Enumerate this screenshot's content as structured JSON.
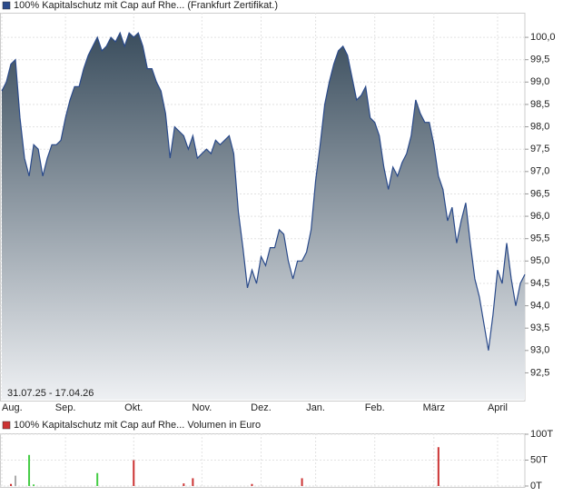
{
  "chart_data": [
    {
      "type": "area",
      "legend": "100% Kapitalschutz mit Cap  auf Rhe... (Frankfurt Zertifikat.)",
      "legend_color": "#2a4a8a",
      "date_range": "31.07.25 - 17.04.26",
      "color": "#2a4a8a",
      "gradient": [
        "#3b4e5e",
        "#eef0f3"
      ],
      "categories": [
        "Aug.",
        null,
        null,
        null,
        null,
        null,
        null,
        null,
        null,
        null,
        null,
        null,
        null,
        null,
        "Sep.",
        null,
        null,
        null,
        null,
        null,
        null,
        null,
        null,
        null,
        null,
        null,
        null,
        null,
        null,
        "Okt.",
        null,
        null,
        null,
        null,
        null,
        null,
        null,
        null,
        null,
        null,
        null,
        null,
        null,
        null,
        "Nov.",
        null,
        null,
        null,
        null,
        null,
        null,
        null,
        null,
        null,
        null,
        null,
        null,
        "Dez.",
        null,
        null,
        null,
        null,
        null,
        null,
        null,
        null,
        null,
        null,
        null,
        "Jan.",
        null,
        null,
        null,
        null,
        null,
        null,
        null,
        null,
        null,
        null,
        null,
        null,
        "Feb.",
        null,
        null,
        null,
        null,
        null,
        null,
        null,
        null,
        null,
        null,
        null,
        null,
        "März",
        null,
        null,
        null,
        null,
        null,
        null,
        null,
        null,
        null,
        null,
        null,
        null,
        null,
        "April",
        null,
        null,
        null,
        null,
        null,
        null
      ],
      "values": [
        98.8,
        99.0,
        99.4,
        99.5,
        98.2,
        97.3,
        96.9,
        97.6,
        97.5,
        96.9,
        97.3,
        97.6,
        97.6,
        97.7,
        98.2,
        98.6,
        98.9,
        98.9,
        99.3,
        99.6,
        99.8,
        100.0,
        99.7,
        99.8,
        100.0,
        99.9,
        100.1,
        99.8,
        100.1,
        100.0,
        100.1,
        99.8,
        99.3,
        99.3,
        99.0,
        98.8,
        98.3,
        97.3,
        98.0,
        97.9,
        97.8,
        97.5,
        97.8,
        97.3,
        97.4,
        97.5,
        97.4,
        97.7,
        97.6,
        97.7,
        97.8,
        97.4,
        96.1,
        95.3,
        94.4,
        94.8,
        94.5,
        95.1,
        94.9,
        95.3,
        95.3,
        95.7,
        95.6,
        95.0,
        94.6,
        95.0,
        95.0,
        95.2,
        95.7,
        96.8,
        97.6,
        98.5,
        99.0,
        99.4,
        99.7,
        99.8,
        99.6,
        99.1,
        98.6,
        98.7,
        98.9,
        98.2,
        98.1,
        97.8,
        97.1,
        96.6,
        97.1,
        96.9,
        97.2,
        97.4,
        97.8,
        98.6,
        98.3,
        98.1,
        98.1,
        97.6,
        96.9,
        96.6,
        95.9,
        96.2,
        95.4,
        95.9,
        96.3,
        95.4,
        94.6,
        94.2,
        93.6,
        93.0,
        93.8,
        94.8,
        94.5,
        95.4,
        94.6,
        94.0,
        94.5,
        94.7
      ],
      "ylim": [
        91.9,
        100.55
      ],
      "yticks": [
        {
          "value": 92.5,
          "label": "92,5"
        },
        {
          "value": 93,
          "label": "93,0"
        },
        {
          "value": 93.5,
          "label": "93,5"
        },
        {
          "value": 94,
          "label": "94,0"
        },
        {
          "value": 94.5,
          "label": "94,5"
        },
        {
          "value": 95,
          "label": "95,0"
        },
        {
          "value": 95.5,
          "label": "95,5"
        },
        {
          "value": 96,
          "label": "96,0"
        },
        {
          "value": 96.5,
          "label": "96,5"
        },
        {
          "value": 97,
          "label": "97,0"
        },
        {
          "value": 97.5,
          "label": "97,5"
        },
        {
          "value": 98,
          "label": "98,0"
        },
        {
          "value": 98.5,
          "label": "98,5"
        },
        {
          "value": 99,
          "label": "99,0"
        },
        {
          "value": 99.5,
          "label": "99,5"
        },
        {
          "value": 100,
          "label": "100,0"
        }
      ],
      "grid": true
    },
    {
      "type": "bar",
      "legend": "100% Kapitalschutz mit Cap  auf Rhe... Volumen in Euro",
      "legend_color": "#cc3333",
      "values": [
        null,
        null,
        4,
        20,
        null,
        null,
        60,
        3,
        null,
        null,
        null,
        null,
        null,
        null,
        null,
        null,
        null,
        null,
        null,
        null,
        null,
        25,
        null,
        null,
        null,
        null,
        null,
        null,
        null,
        50,
        null,
        null,
        null,
        null,
        null,
        null,
        null,
        null,
        null,
        null,
        5,
        null,
        15,
        null,
        null,
        null,
        null,
        null,
        null,
        null,
        null,
        null,
        null,
        null,
        null,
        4,
        null,
        null,
        null,
        null,
        null,
        null,
        null,
        null,
        null,
        null,
        15,
        null,
        null,
        null,
        null,
        null,
        null,
        null,
        null,
        null,
        null,
        null,
        null,
        null,
        null,
        null,
        null,
        null,
        null,
        null,
        null,
        null,
        null,
        null,
        null,
        null,
        null,
        null,
        null,
        null,
        75,
        null,
        null,
        null,
        null,
        null,
        null,
        null,
        null,
        null,
        null,
        null,
        null,
        null,
        null,
        null,
        null,
        null,
        null,
        null
      ],
      "colors": [
        null,
        null,
        "#cc3333",
        "#aaaaaa",
        null,
        null,
        "#44cc44",
        "#44cc44",
        null,
        null,
        null,
        null,
        null,
        null,
        null,
        null,
        null,
        null,
        null,
        null,
        null,
        "#44cc44",
        null,
        null,
        null,
        null,
        null,
        null,
        null,
        "#cc3333",
        null,
        null,
        null,
        null,
        null,
        null,
        null,
        null,
        null,
        null,
        "#cc3333",
        null,
        "#cc3333",
        null,
        null,
        null,
        null,
        null,
        null,
        null,
        null,
        null,
        null,
        null,
        null,
        "#cc3333",
        null,
        null,
        null,
        null,
        null,
        null,
        null,
        null,
        null,
        null,
        "#cc3333",
        null,
        null,
        null,
        null,
        null,
        null,
        null,
        null,
        null,
        null,
        null,
        null,
        null,
        null,
        null,
        null,
        null,
        null,
        null,
        null,
        null,
        null,
        null,
        null,
        null,
        null,
        null,
        null,
        null,
        "#cc3333",
        null,
        null,
        null,
        null,
        null,
        null,
        null,
        null,
        null,
        null,
        null,
        null,
        null,
        null,
        null,
        null,
        null,
        null,
        null
      ],
      "ylim": [
        0,
        100
      ],
      "yticks": [
        {
          "value": 0,
          "label": "0T"
        },
        {
          "value": 50,
          "label": "50T"
        },
        {
          "value": 100,
          "label": "100T"
        }
      ],
      "grid": true
    }
  ]
}
